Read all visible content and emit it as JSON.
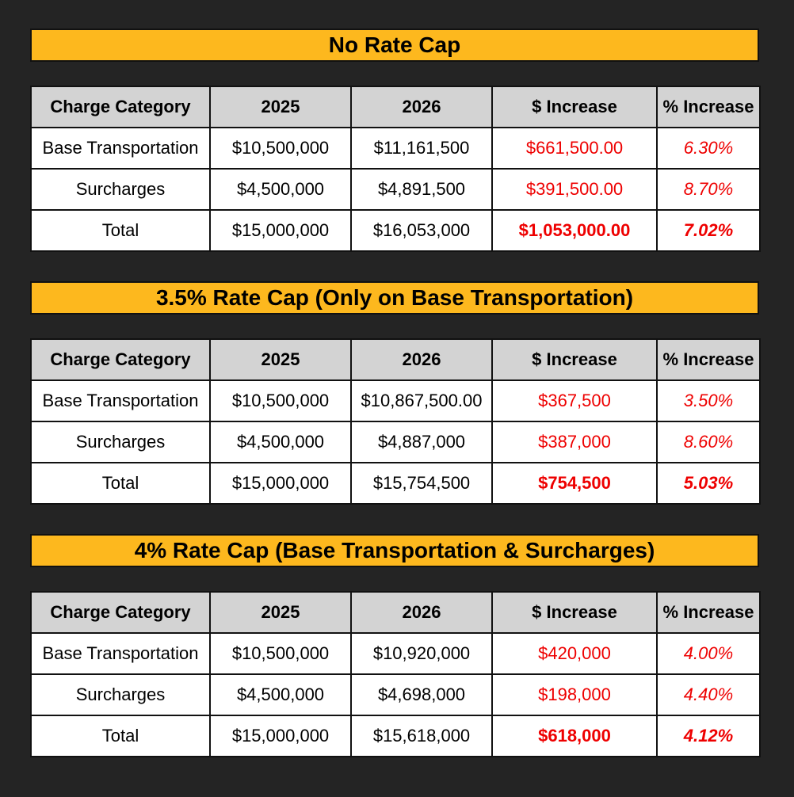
{
  "headers": [
    "Charge Category",
    "2025",
    "2026",
    "$ Increase",
    "% Increase"
  ],
  "scenarios": [
    {
      "title": "No Rate Cap",
      "rows": [
        {
          "category": "Base Transportation",
          "y2025": "$10,500,000",
          "y2026": "$11,161,500",
          "increase": "$661,500.00",
          "pct": "6.30%"
        },
        {
          "category": "Surcharges",
          "y2025": "$4,500,000",
          "y2026": "$4,891,500",
          "increase": "$391,500.00",
          "pct": "8.70%"
        },
        {
          "category": "Total",
          "y2025": "$15,000,000",
          "y2026": "$16,053,000",
          "increase": "$1,053,000.00",
          "pct": "7.02%"
        }
      ]
    },
    {
      "title": "3.5% Rate Cap (Only on Base Transportation)",
      "rows": [
        {
          "category": "Base Transportation",
          "y2025": "$10,500,000",
          "y2026": "$10,867,500.00",
          "increase": "$367,500",
          "pct": "3.50%"
        },
        {
          "category": "Surcharges",
          "y2025": "$4,500,000",
          "y2026": "$4,887,000",
          "increase": "$387,000",
          "pct": "8.60%"
        },
        {
          "category": "Total",
          "y2025": "$15,000,000",
          "y2026": "$15,754,500",
          "increase": "$754,500",
          "pct": "5.03%"
        }
      ]
    },
    {
      "title": "4% Rate Cap (Base Transportation & Surcharges)",
      "rows": [
        {
          "category": "Base Transportation",
          "y2025": "$10,500,000",
          "y2026": "$10,920,000",
          "increase": "$420,000",
          "pct": "4.00%"
        },
        {
          "category": "Surcharges",
          "y2025": "$4,500,000",
          "y2026": "$4,698,000",
          "increase": "$198,000",
          "pct": "4.40%"
        },
        {
          "category": "Total",
          "y2025": "$15,000,000",
          "y2026": "$15,618,000",
          "increase": "$618,000",
          "pct": "4.12%"
        }
      ]
    }
  ],
  "colors": {
    "background": "#242424",
    "banner": "#FDB81E",
    "header_fill": "#D3D3D3",
    "increase_text": "#EE0000"
  }
}
